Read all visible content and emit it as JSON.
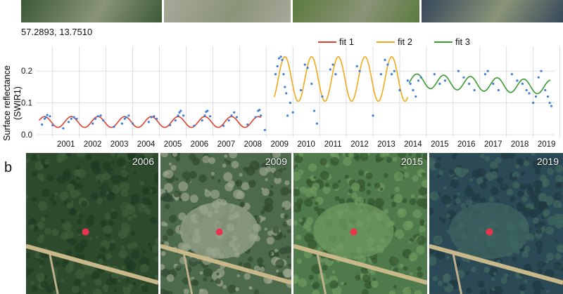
{
  "coordinates": "57.2893, 13.7510",
  "panel_b_label": "b",
  "photos": [
    {
      "year": "2006",
      "palette": [
        "#2d4a2c",
        "#3f5f3a",
        "#1f3a22"
      ],
      "marker": "#e8344e"
    },
    {
      "year": "2009",
      "palette": [
        "#4d6a4c",
        "#9aa58f",
        "#2f4a31"
      ],
      "marker": "#e8344e"
    },
    {
      "year": "2015",
      "palette": [
        "#4f7a4b",
        "#6f9a60",
        "#33552f"
      ],
      "marker": "#e8344e"
    },
    {
      "year": "2019",
      "palette": [
        "#2c4a55",
        "#3f6660",
        "#1f3840"
      ],
      "marker": "#e8344e"
    }
  ],
  "top_strip_colors": [
    "#3c5a36",
    "#a8a89a",
    "#5c7a3e",
    "#37485a"
  ],
  "chart_data": {
    "type": "line",
    "ylabel": "Surface reflectance (SWIR1)",
    "ylabel_lines": [
      "Surface reflectance",
      "(SWIR1)"
    ],
    "xlim": [
      2000.4,
      2019.8
    ],
    "ylim": [
      0,
      0.26
    ],
    "yticks": [
      0.0,
      0.1,
      0.2
    ],
    "ytick_labels": [
      "0.0",
      "0.1",
      "0.2"
    ],
    "xtick_labels": [
      "2001",
      "2002",
      "2003",
      "2004",
      "2005",
      "2006",
      "2007",
      "2008",
      "2009",
      "2010",
      "2011",
      "2012",
      "2013",
      "2014",
      "2015",
      "2016",
      "2017",
      "2018",
      "2019"
    ],
    "grid": true,
    "legend_position": "top-right",
    "series": [
      {
        "name": "fit 1",
        "color": "#e0402e",
        "x_range": [
          2000.5,
          2008.8
        ],
        "mean": 0.04,
        "amplitude": 0.017
      },
      {
        "name": "fit 2",
        "color": "#f2a818",
        "x_range": [
          2009.3,
          2014.3
        ],
        "mean": 0.175,
        "amplitude": 0.07,
        "start_value": 0.19
      },
      {
        "name": "fit 3",
        "color": "#3a9a32",
        "x_range": [
          2014.35,
          2019.65
        ],
        "mean": 0.17,
        "amplitude": 0.022
      }
    ],
    "observations_color": "#3f7fd6",
    "observations": [
      [
        2000.6,
        0.032
      ],
      [
        2000.7,
        0.05
      ],
      [
        2000.75,
        0.055
      ],
      [
        2000.8,
        0.062
      ],
      [
        2000.9,
        0.058
      ],
      [
        2001.0,
        0.03
      ],
      [
        2001.4,
        0.02
      ],
      [
        2001.6,
        0.04
      ],
      [
        2001.7,
        0.05
      ],
      [
        2001.8,
        0.055
      ],
      [
        2001.9,
        0.05
      ],
      [
        2002.5,
        0.035
      ],
      [
        2002.6,
        0.05
      ],
      [
        2002.7,
        0.058
      ],
      [
        2002.8,
        0.06
      ],
      [
        2002.9,
        0.045
      ],
      [
        2003.3,
        0.025
      ],
      [
        2003.6,
        0.035
      ],
      [
        2003.7,
        0.05
      ],
      [
        2003.75,
        0.055
      ],
      [
        2003.85,
        0.06
      ],
      [
        2004.0,
        0.035
      ],
      [
        2004.6,
        0.04
      ],
      [
        2004.7,
        0.055
      ],
      [
        2004.8,
        0.058
      ],
      [
        2004.9,
        0.05
      ],
      [
        2005.4,
        0.03
      ],
      [
        2005.6,
        0.045
      ],
      [
        2005.7,
        0.06
      ],
      [
        2005.75,
        0.07
      ],
      [
        2005.8,
        0.075
      ],
      [
        2005.9,
        0.06
      ],
      [
        2006.3,
        0.028
      ],
      [
        2006.6,
        0.045
      ],
      [
        2006.7,
        0.06
      ],
      [
        2006.75,
        0.072
      ],
      [
        2006.8,
        0.075
      ],
      [
        2006.9,
        0.058
      ],
      [
        2007.4,
        0.028
      ],
      [
        2007.6,
        0.045
      ],
      [
        2007.7,
        0.06
      ],
      [
        2007.8,
        0.07
      ],
      [
        2007.9,
        0.055
      ],
      [
        2008.3,
        0.032
      ],
      [
        2008.6,
        0.055
      ],
      [
        2008.7,
        0.075
      ],
      [
        2008.75,
        0.078
      ],
      [
        2008.8,
        0.06
      ],
      [
        2008.95,
        0.015
      ],
      [
        2009.35,
        0.19
      ],
      [
        2009.42,
        0.215
      ],
      [
        2009.48,
        0.24
      ],
      [
        2009.55,
        0.245
      ],
      [
        2009.6,
        0.235
      ],
      [
        2009.65,
        0.19
      ],
      [
        2009.7,
        0.15
      ],
      [
        2009.75,
        0.13
      ],
      [
        2009.8,
        0.06
      ],
      [
        2009.9,
        0.1
      ],
      [
        2010.0,
        0.07
      ],
      [
        2010.3,
        0.14
      ],
      [
        2010.45,
        0.22
      ],
      [
        2010.55,
        0.21
      ],
      [
        2010.7,
        0.16
      ],
      [
        2010.8,
        0.075
      ],
      [
        2010.9,
        0.035
      ],
      [
        2011.1,
        0.12
      ],
      [
        2011.4,
        0.205
      ],
      [
        2011.5,
        0.22
      ],
      [
        2011.6,
        0.19
      ],
      [
        2012.4,
        0.215
      ],
      [
        2012.5,
        0.2
      ],
      [
        2013.0,
        0.06
      ],
      [
        2013.3,
        0.19
      ],
      [
        2013.45,
        0.235
      ],
      [
        2013.55,
        0.22
      ],
      [
        2013.7,
        0.19
      ],
      [
        2013.8,
        0.2
      ],
      [
        2014.0,
        0.14
      ],
      [
        2014.3,
        0.17
      ],
      [
        2014.4,
        0.16
      ],
      [
        2014.5,
        0.14
      ],
      [
        2014.6,
        0.12
      ],
      [
        2014.7,
        0.17
      ],
      [
        2014.8,
        0.18
      ],
      [
        2015.3,
        0.19
      ],
      [
        2015.5,
        0.16
      ],
      [
        2015.7,
        0.17
      ],
      [
        2016.2,
        0.2
      ],
      [
        2016.4,
        0.18
      ],
      [
        2016.6,
        0.16
      ],
      [
        2016.8,
        0.14
      ],
      [
        2017.2,
        0.19
      ],
      [
        2017.3,
        0.2
      ],
      [
        2017.5,
        0.16
      ],
      [
        2017.7,
        0.14
      ],
      [
        2018.2,
        0.19
      ],
      [
        2018.4,
        0.17
      ],
      [
        2018.6,
        0.16
      ],
      [
        2018.75,
        0.14
      ],
      [
        2018.85,
        0.13
      ],
      [
        2019.0,
        0.1
      ],
      [
        2019.1,
        0.12
      ],
      [
        2019.2,
        0.18
      ],
      [
        2019.3,
        0.2
      ],
      [
        2019.45,
        0.14
      ],
      [
        2019.55,
        0.12
      ],
      [
        2019.62,
        0.1
      ],
      [
        2019.68,
        0.09
      ]
    ]
  }
}
